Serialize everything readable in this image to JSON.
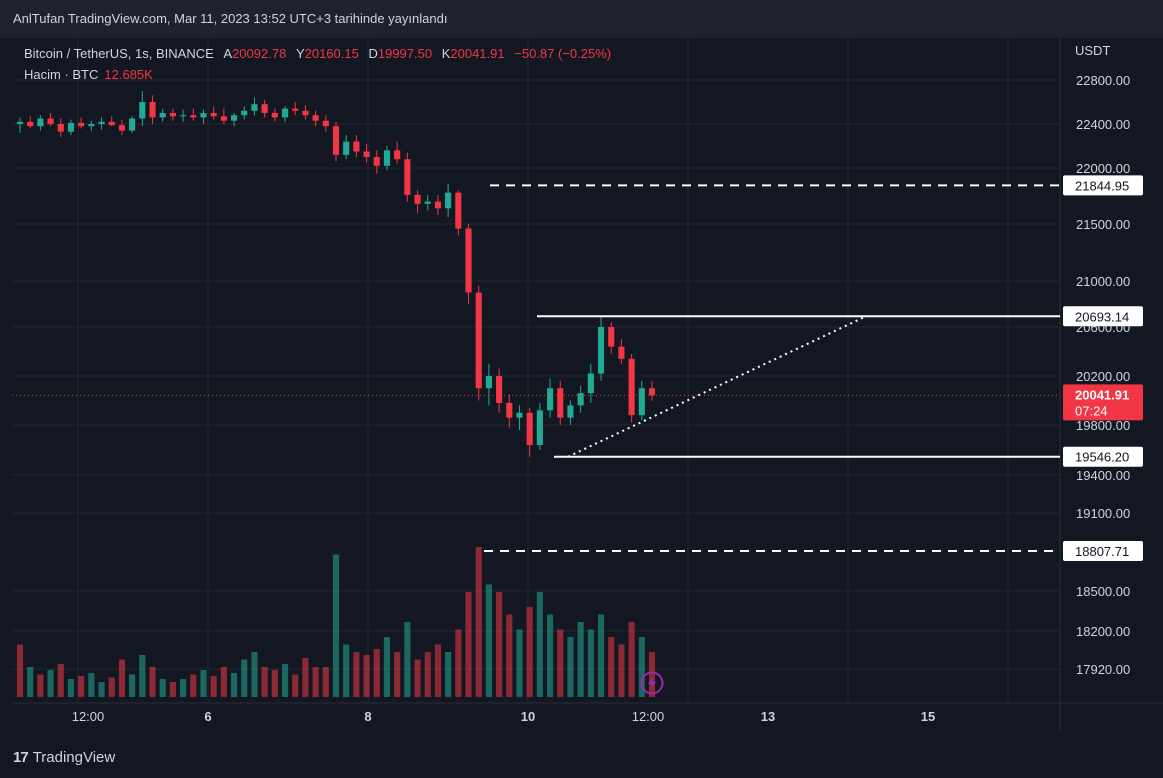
{
  "publication": {
    "text": "AnlTufan TradingView.com, Mar 11, 2023 13:52 UTC+3 tarihinde yayınlandı"
  },
  "legend": {
    "symbol": "Bitcoin / TetherUS, 1s, BINANCE",
    "o_label": "A",
    "o": "20092.78",
    "h_label": "Y",
    "h": "20160.15",
    "l_label": "D",
    "l": "19997.50",
    "c_label": "K",
    "c": "20041.91",
    "change": "−50.87 (−0.25%)",
    "volume_label": "Hacim · BTC",
    "volume": "12.685K"
  },
  "footer": {
    "logo_mark": "17",
    "logo_text": "TradingView"
  },
  "colors": {
    "up": "#22ab94",
    "down": "#f23645",
    "bg": "#131722",
    "grid": "#232733",
    "text": "#d1d4dc",
    "line": "#ffffff"
  },
  "chart_data": {
    "type": "candlestick",
    "currency": "USDT",
    "y_ticks": [
      "22800.00",
      "22400.00",
      "22000.00",
      "21500.00",
      "21000.00",
      "20600.00",
      "20200.00",
      "19800.00",
      "19400.00",
      "19100.00",
      "18500.00",
      "18200.00",
      "17920.00"
    ],
    "x_ticks": [
      "12:00",
      "6",
      "8",
      "10",
      "12:00",
      "13",
      "15"
    ],
    "levels": [
      {
        "value": "21844.95",
        "style": "dashed"
      },
      {
        "value": "20693.14",
        "style": "solid"
      },
      {
        "value": "19546.20",
        "style": "solid"
      },
      {
        "value": "18807.71",
        "style": "dashed"
      }
    ],
    "last_price": {
      "value": "20041.91",
      "countdown": "07:24"
    },
    "trendline": {
      "from": 19546.2,
      "to": 20693.14,
      "style": "dotted"
    },
    "candles": [
      {
        "o": 22400,
        "h": 22460,
        "l": 22320,
        "c": 22420
      },
      {
        "o": 22420,
        "h": 22470,
        "l": 22360,
        "c": 22380
      },
      {
        "o": 22380,
        "h": 22480,
        "l": 22340,
        "c": 22450
      },
      {
        "o": 22450,
        "h": 22500,
        "l": 22380,
        "c": 22400
      },
      {
        "o": 22400,
        "h": 22450,
        "l": 22280,
        "c": 22330
      },
      {
        "o": 22330,
        "h": 22440,
        "l": 22300,
        "c": 22410
      },
      {
        "o": 22410,
        "h": 22460,
        "l": 22360,
        "c": 22380
      },
      {
        "o": 22380,
        "h": 22430,
        "l": 22340,
        "c": 22400
      },
      {
        "o": 22400,
        "h": 22460,
        "l": 22350,
        "c": 22420
      },
      {
        "o": 22420,
        "h": 22470,
        "l": 22380,
        "c": 22390
      },
      {
        "o": 22390,
        "h": 22440,
        "l": 22300,
        "c": 22340
      },
      {
        "o": 22340,
        "h": 22470,
        "l": 22320,
        "c": 22450
      },
      {
        "o": 22450,
        "h": 22700,
        "l": 22380,
        "c": 22600
      },
      {
        "o": 22600,
        "h": 22660,
        "l": 22400,
        "c": 22460
      },
      {
        "o": 22460,
        "h": 22540,
        "l": 22420,
        "c": 22500
      },
      {
        "o": 22500,
        "h": 22540,
        "l": 22430,
        "c": 22470
      },
      {
        "o": 22470,
        "h": 22530,
        "l": 22420,
        "c": 22480
      },
      {
        "o": 22480,
        "h": 22540,
        "l": 22430,
        "c": 22460
      },
      {
        "o": 22460,
        "h": 22530,
        "l": 22400,
        "c": 22500
      },
      {
        "o": 22500,
        "h": 22560,
        "l": 22440,
        "c": 22470
      },
      {
        "o": 22470,
        "h": 22540,
        "l": 22400,
        "c": 22430
      },
      {
        "o": 22430,
        "h": 22500,
        "l": 22380,
        "c": 22480
      },
      {
        "o": 22480,
        "h": 22560,
        "l": 22440,
        "c": 22520
      },
      {
        "o": 22520,
        "h": 22640,
        "l": 22480,
        "c": 22580
      },
      {
        "o": 22580,
        "h": 22620,
        "l": 22460,
        "c": 22500
      },
      {
        "o": 22500,
        "h": 22540,
        "l": 22420,
        "c": 22460
      },
      {
        "o": 22460,
        "h": 22560,
        "l": 22420,
        "c": 22540
      },
      {
        "o": 22540,
        "h": 22600,
        "l": 22480,
        "c": 22520
      },
      {
        "o": 22520,
        "h": 22570,
        "l": 22440,
        "c": 22480
      },
      {
        "o": 22480,
        "h": 22520,
        "l": 22380,
        "c": 22430
      },
      {
        "o": 22430,
        "h": 22480,
        "l": 22330,
        "c": 22380
      },
      {
        "o": 22380,
        "h": 22420,
        "l": 22060,
        "c": 22120
      },
      {
        "o": 22120,
        "h": 22300,
        "l": 22080,
        "c": 22240
      },
      {
        "o": 22240,
        "h": 22300,
        "l": 22100,
        "c": 22150
      },
      {
        "o": 22150,
        "h": 22220,
        "l": 22050,
        "c": 22100
      },
      {
        "o": 22100,
        "h": 22160,
        "l": 21950,
        "c": 22020
      },
      {
        "o": 22020,
        "h": 22200,
        "l": 21980,
        "c": 22160
      },
      {
        "o": 22160,
        "h": 22240,
        "l": 22040,
        "c": 22080
      },
      {
        "o": 22080,
        "h": 22140,
        "l": 21700,
        "c": 21760
      },
      {
        "o": 21760,
        "h": 21800,
        "l": 21600,
        "c": 21680
      },
      {
        "o": 21680,
        "h": 21760,
        "l": 21620,
        "c": 21700
      },
      {
        "o": 21700,
        "h": 21760,
        "l": 21580,
        "c": 21640
      },
      {
        "o": 21640,
        "h": 21860,
        "l": 21560,
        "c": 21780
      },
      {
        "o": 21780,
        "h": 21800,
        "l": 21400,
        "c": 21460
      },
      {
        "o": 21460,
        "h": 21500,
        "l": 20800,
        "c": 20900
      },
      {
        "o": 20900,
        "h": 20960,
        "l": 20000,
        "c": 20100
      },
      {
        "o": 20100,
        "h": 20300,
        "l": 19960,
        "c": 20200
      },
      {
        "o": 20200,
        "h": 20260,
        "l": 19900,
        "c": 19980
      },
      {
        "o": 19980,
        "h": 20050,
        "l": 19780,
        "c": 19860
      },
      {
        "o": 19860,
        "h": 19960,
        "l": 19760,
        "c": 19900
      },
      {
        "o": 19900,
        "h": 19940,
        "l": 19546,
        "c": 19640
      },
      {
        "o": 19640,
        "h": 19980,
        "l": 19600,
        "c": 19920
      },
      {
        "o": 19920,
        "h": 20180,
        "l": 19860,
        "c": 20100
      },
      {
        "o": 20100,
        "h": 20160,
        "l": 19800,
        "c": 19860
      },
      {
        "o": 19860,
        "h": 20000,
        "l": 19800,
        "c": 19960
      },
      {
        "o": 19960,
        "h": 20120,
        "l": 19900,
        "c": 20060
      },
      {
        "o": 20060,
        "h": 20300,
        "l": 19980,
        "c": 20220
      },
      {
        "o": 20220,
        "h": 20693,
        "l": 20160,
        "c": 20600
      },
      {
        "o": 20600,
        "h": 20640,
        "l": 20380,
        "c": 20440
      },
      {
        "o": 20440,
        "h": 20500,
        "l": 20300,
        "c": 20340
      },
      {
        "o": 20340,
        "h": 20380,
        "l": 19820,
        "c": 19880
      },
      {
        "o": 19880,
        "h": 20160,
        "l": 19840,
        "c": 20100
      },
      {
        "o": 20100,
        "h": 20160,
        "l": 19998,
        "c": 20042
      }
    ],
    "volume": [
      {
        "v": 0.35,
        "up": false
      },
      {
        "v": 0.2,
        "up": true
      },
      {
        "v": 0.15,
        "up": false
      },
      {
        "v": 0.18,
        "up": true
      },
      {
        "v": 0.22,
        "up": false
      },
      {
        "v": 0.12,
        "up": true
      },
      {
        "v": 0.14,
        "up": false
      },
      {
        "v": 0.16,
        "up": true
      },
      {
        "v": 0.1,
        "up": true
      },
      {
        "v": 0.13,
        "up": false
      },
      {
        "v": 0.25,
        "up": false
      },
      {
        "v": 0.15,
        "up": true
      },
      {
        "v": 0.28,
        "up": true
      },
      {
        "v": 0.2,
        "up": false
      },
      {
        "v": 0.12,
        "up": true
      },
      {
        "v": 0.1,
        "up": false
      },
      {
        "v": 0.12,
        "up": true
      },
      {
        "v": 0.15,
        "up": false
      },
      {
        "v": 0.18,
        "up": true
      },
      {
        "v": 0.14,
        "up": false
      },
      {
        "v": 0.2,
        "up": false
      },
      {
        "v": 0.16,
        "up": true
      },
      {
        "v": 0.25,
        "up": true
      },
      {
        "v": 0.3,
        "up": true
      },
      {
        "v": 0.2,
        "up": false
      },
      {
        "v": 0.18,
        "up": false
      },
      {
        "v": 0.22,
        "up": true
      },
      {
        "v": 0.15,
        "up": false
      },
      {
        "v": 0.26,
        "up": false
      },
      {
        "v": 0.2,
        "up": false
      },
      {
        "v": 0.2,
        "up": false
      },
      {
        "v": 0.95,
        "up": true
      },
      {
        "v": 0.35,
        "up": true
      },
      {
        "v": 0.3,
        "up": false
      },
      {
        "v": 0.28,
        "up": false
      },
      {
        "v": 0.32,
        "up": false
      },
      {
        "v": 0.4,
        "up": true
      },
      {
        "v": 0.3,
        "up": false
      },
      {
        "v": 0.5,
        "up": true
      },
      {
        "v": 0.25,
        "up": false
      },
      {
        "v": 0.3,
        "up": false
      },
      {
        "v": 0.35,
        "up": false
      },
      {
        "v": 0.3,
        "up": true
      },
      {
        "v": 0.45,
        "up": false
      },
      {
        "v": 0.7,
        "up": false
      },
      {
        "v": 1.0,
        "up": false
      },
      {
        "v": 0.75,
        "up": true
      },
      {
        "v": 0.7,
        "up": false
      },
      {
        "v": 0.55,
        "up": false
      },
      {
        "v": 0.45,
        "up": true
      },
      {
        "v": 0.6,
        "up": false
      },
      {
        "v": 0.7,
        "up": true
      },
      {
        "v": 0.55,
        "up": true
      },
      {
        "v": 0.45,
        "up": false
      },
      {
        "v": 0.4,
        "up": true
      },
      {
        "v": 0.5,
        "up": true
      },
      {
        "v": 0.45,
        "up": true
      },
      {
        "v": 0.55,
        "up": true
      },
      {
        "v": 0.4,
        "up": false
      },
      {
        "v": 0.35,
        "up": false
      },
      {
        "v": 0.5,
        "up": false
      },
      {
        "v": 0.4,
        "up": true
      },
      {
        "v": 0.3,
        "up": false
      }
    ]
  }
}
